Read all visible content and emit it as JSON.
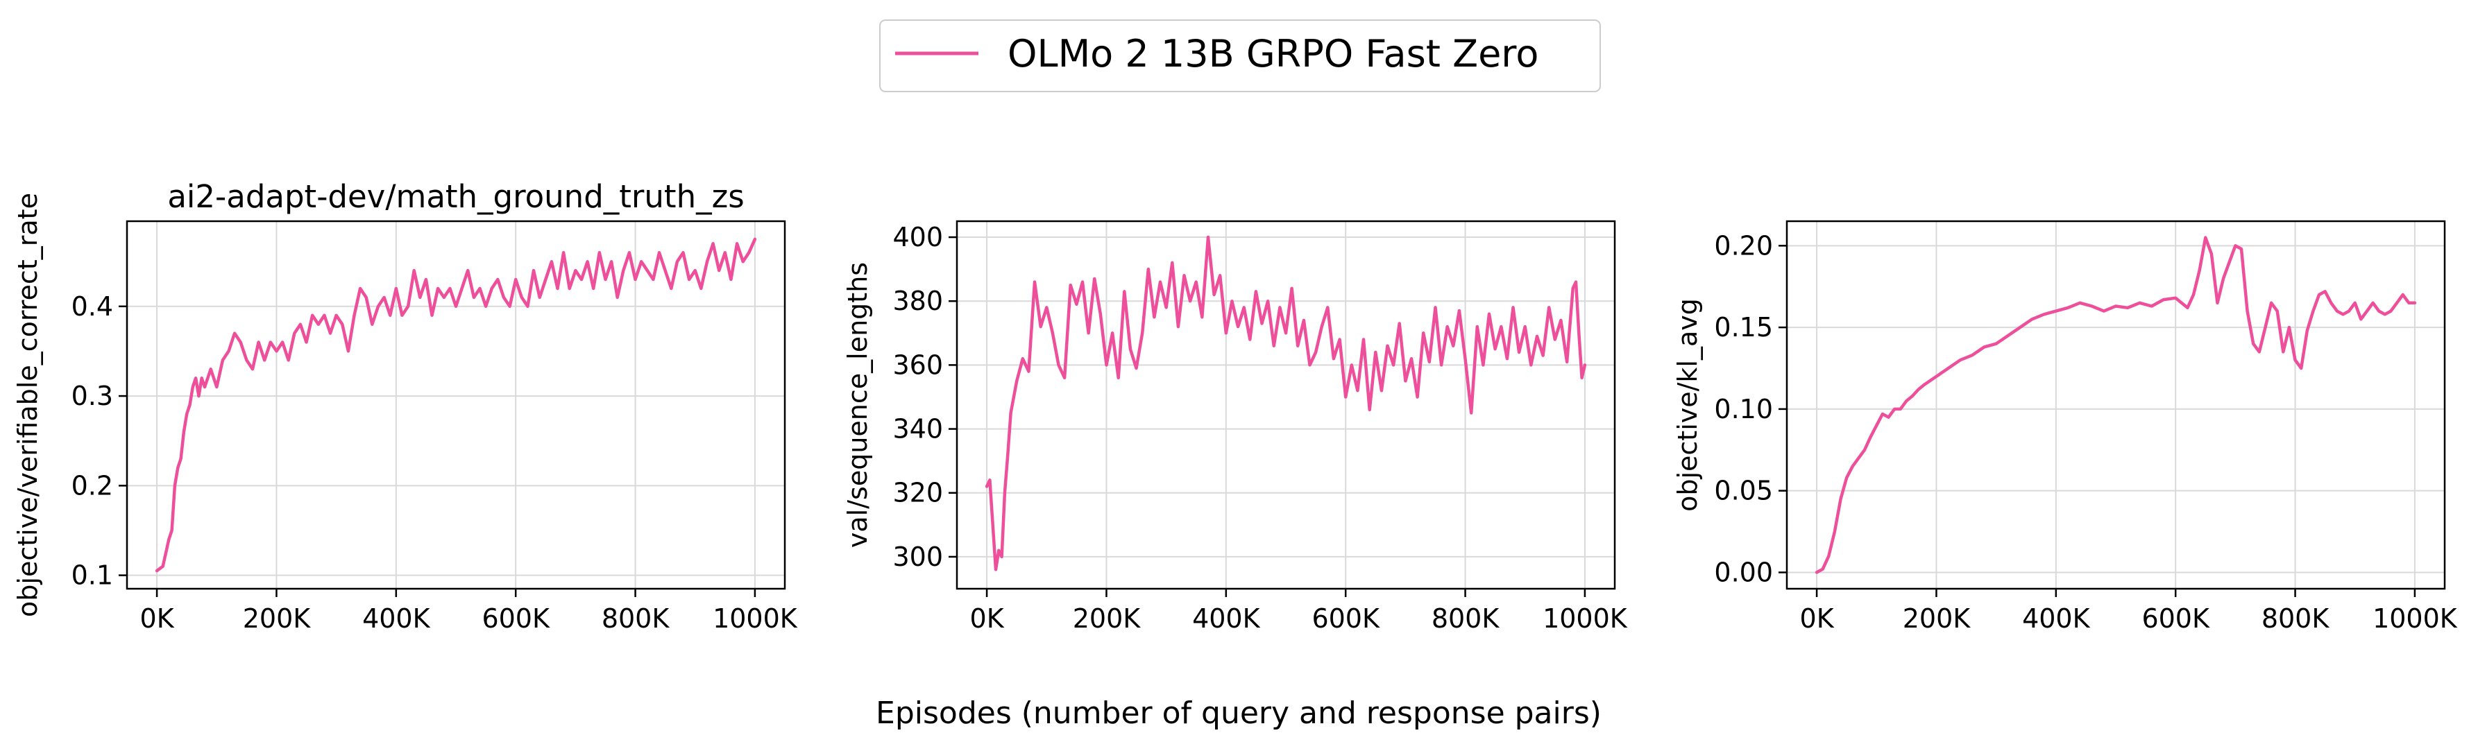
{
  "legend": {
    "label": "OLMo 2 13B GRPO Fast Zero",
    "color": "#ee4f9b"
  },
  "figure": {
    "xlabel": "Episodes (number of query and response pairs)"
  },
  "chart_data": [
    {
      "type": "line",
      "title": "ai2-adapt-dev/math_ground_truth_zs",
      "xlabel": "",
      "ylabel": "objective/verifiable_correct_rate",
      "xlim": [
        -50000,
        1050000
      ],
      "ylim": [
        0.085,
        0.495
      ],
      "xticks": [
        0,
        200000,
        400000,
        600000,
        800000,
        1000000
      ],
      "xtick_labels": [
        "0K",
        "200K",
        "400K",
        "600K",
        "800K",
        "1000K"
      ],
      "yticks": [
        0.1,
        0.2,
        0.3,
        0.4
      ],
      "ytick_labels": [
        "0.1",
        "0.2",
        "0.3",
        "0.4"
      ],
      "grid": true,
      "series": [
        {
          "name": "OLMo 2 13B GRPO Fast Zero",
          "color": "#ee4f9b",
          "x": [
            0,
            10000,
            20000,
            25000,
            30000,
            35000,
            40000,
            45000,
            50000,
            55000,
            60000,
            65000,
            70000,
            75000,
            80000,
            90000,
            100000,
            110000,
            120000,
            130000,
            140000,
            150000,
            160000,
            170000,
            180000,
            190000,
            200000,
            210000,
            220000,
            230000,
            240000,
            250000,
            260000,
            270000,
            280000,
            290000,
            300000,
            310000,
            320000,
            330000,
            340000,
            350000,
            360000,
            370000,
            380000,
            390000,
            400000,
            410000,
            420000,
            430000,
            440000,
            450000,
            460000,
            470000,
            480000,
            490000,
            500000,
            510000,
            520000,
            530000,
            540000,
            550000,
            560000,
            570000,
            580000,
            590000,
            600000,
            610000,
            620000,
            630000,
            640000,
            650000,
            660000,
            670000,
            680000,
            690000,
            700000,
            710000,
            720000,
            730000,
            740000,
            750000,
            760000,
            770000,
            780000,
            790000,
            800000,
            810000,
            820000,
            830000,
            840000,
            850000,
            860000,
            870000,
            880000,
            890000,
            900000,
            910000,
            920000,
            930000,
            940000,
            950000,
            960000,
            970000,
            980000,
            990000,
            1000000
          ],
          "y": [
            0.105,
            0.11,
            0.14,
            0.15,
            0.2,
            0.22,
            0.23,
            0.26,
            0.28,
            0.29,
            0.31,
            0.32,
            0.3,
            0.32,
            0.31,
            0.33,
            0.31,
            0.34,
            0.35,
            0.37,
            0.36,
            0.34,
            0.33,
            0.36,
            0.34,
            0.36,
            0.35,
            0.36,
            0.34,
            0.37,
            0.38,
            0.36,
            0.39,
            0.38,
            0.39,
            0.37,
            0.39,
            0.38,
            0.35,
            0.39,
            0.42,
            0.41,
            0.38,
            0.4,
            0.41,
            0.39,
            0.42,
            0.39,
            0.4,
            0.44,
            0.41,
            0.43,
            0.39,
            0.42,
            0.41,
            0.42,
            0.4,
            0.42,
            0.44,
            0.41,
            0.42,
            0.4,
            0.42,
            0.43,
            0.41,
            0.4,
            0.43,
            0.41,
            0.4,
            0.44,
            0.41,
            0.43,
            0.45,
            0.42,
            0.46,
            0.42,
            0.44,
            0.43,
            0.45,
            0.42,
            0.46,
            0.43,
            0.45,
            0.41,
            0.44,
            0.46,
            0.43,
            0.45,
            0.44,
            0.43,
            0.46,
            0.44,
            0.42,
            0.45,
            0.46,
            0.43,
            0.44,
            0.42,
            0.45,
            0.47,
            0.44,
            0.46,
            0.43,
            0.47,
            0.45,
            0.46,
            0.475
          ]
        }
      ]
    },
    {
      "type": "line",
      "title": "",
      "xlabel": "",
      "ylabel": "val/sequence_lengths",
      "xlim": [
        -50000,
        1050000
      ],
      "ylim": [
        290,
        405
      ],
      "xticks": [
        0,
        200000,
        400000,
        600000,
        800000,
        1000000
      ],
      "xtick_labels": [
        "0K",
        "200K",
        "400K",
        "600K",
        "800K",
        "1000K"
      ],
      "yticks": [
        300,
        320,
        340,
        360,
        380,
        400
      ],
      "ytick_labels": [
        "300",
        "320",
        "340",
        "360",
        "380",
        "400"
      ],
      "grid": true,
      "series": [
        {
          "name": "OLMo 2 13B GRPO Fast Zero",
          "color": "#ee4f9b",
          "x": [
            0,
            5000,
            10000,
            15000,
            20000,
            25000,
            30000,
            35000,
            40000,
            50000,
            60000,
            70000,
            80000,
            90000,
            100000,
            110000,
            120000,
            130000,
            140000,
            150000,
            160000,
            170000,
            180000,
            190000,
            200000,
            210000,
            220000,
            230000,
            240000,
            250000,
            260000,
            270000,
            280000,
            290000,
            300000,
            310000,
            320000,
            330000,
            340000,
            350000,
            360000,
            370000,
            380000,
            390000,
            400000,
            410000,
            420000,
            430000,
            440000,
            450000,
            460000,
            470000,
            480000,
            490000,
            500000,
            510000,
            520000,
            530000,
            540000,
            550000,
            560000,
            570000,
            580000,
            590000,
            600000,
            610000,
            620000,
            630000,
            640000,
            650000,
            660000,
            670000,
            680000,
            690000,
            700000,
            710000,
            720000,
            730000,
            740000,
            750000,
            760000,
            770000,
            780000,
            790000,
            800000,
            810000,
            820000,
            830000,
            840000,
            850000,
            860000,
            870000,
            880000,
            890000,
            900000,
            910000,
            920000,
            930000,
            940000,
            950000,
            960000,
            970000,
            980000,
            985000,
            990000,
            995000,
            1000000
          ],
          "y": [
            322,
            324,
            310,
            296,
            302,
            300,
            320,
            332,
            345,
            355,
            362,
            358,
            386,
            372,
            378,
            370,
            360,
            356,
            385,
            379,
            386,
            370,
            387,
            376,
            360,
            370,
            356,
            383,
            365,
            359,
            370,
            390,
            375,
            386,
            378,
            392,
            372,
            388,
            380,
            386,
            375,
            400,
            382,
            388,
            370,
            380,
            372,
            378,
            368,
            383,
            373,
            380,
            366,
            378,
            370,
            384,
            366,
            374,
            360,
            364,
            372,
            378,
            362,
            368,
            350,
            360,
            352,
            368,
            346,
            364,
            352,
            366,
            360,
            373,
            355,
            362,
            350,
            370,
            361,
            378,
            360,
            372,
            366,
            377,
            362,
            345,
            372,
            360,
            376,
            365,
            372,
            362,
            378,
            364,
            372,
            360,
            369,
            363,
            378,
            368,
            374,
            361,
            384,
            386,
            370,
            356,
            360
          ]
        }
      ]
    },
    {
      "type": "line",
      "title": "",
      "xlabel": "",
      "ylabel": "objective/kl_avg",
      "xlim": [
        -50000,
        1050000
      ],
      "ylim": [
        -0.01,
        0.215
      ],
      "xticks": [
        0,
        200000,
        400000,
        600000,
        800000,
        1000000
      ],
      "xtick_labels": [
        "0K",
        "200K",
        "400K",
        "600K",
        "800K",
        "1000K"
      ],
      "yticks": [
        0.0,
        0.05,
        0.1,
        0.15,
        0.2
      ],
      "ytick_labels": [
        "0.00",
        "0.05",
        "0.10",
        "0.15",
        "0.20"
      ],
      "grid": true,
      "series": [
        {
          "name": "OLMo 2 13B GRPO Fast Zero",
          "color": "#ee4f9b",
          "x": [
            0,
            10000,
            20000,
            30000,
            40000,
            50000,
            60000,
            70000,
            80000,
            90000,
            100000,
            110000,
            120000,
            130000,
            140000,
            150000,
            160000,
            170000,
            180000,
            200000,
            220000,
            240000,
            260000,
            280000,
            300000,
            320000,
            340000,
            360000,
            380000,
            400000,
            420000,
            440000,
            460000,
            480000,
            500000,
            520000,
            540000,
            560000,
            580000,
            600000,
            620000,
            630000,
            640000,
            650000,
            660000,
            670000,
            680000,
            690000,
            700000,
            710000,
            720000,
            730000,
            740000,
            750000,
            760000,
            770000,
            780000,
            790000,
            800000,
            810000,
            820000,
            830000,
            840000,
            850000,
            860000,
            870000,
            880000,
            890000,
            900000,
            910000,
            920000,
            930000,
            940000,
            950000,
            960000,
            970000,
            980000,
            990000,
            1000000
          ],
          "y": [
            0.0,
            0.002,
            0.01,
            0.025,
            0.045,
            0.058,
            0.065,
            0.07,
            0.075,
            0.083,
            0.09,
            0.097,
            0.095,
            0.1,
            0.1,
            0.105,
            0.108,
            0.112,
            0.115,
            0.12,
            0.125,
            0.13,
            0.133,
            0.138,
            0.14,
            0.145,
            0.15,
            0.155,
            0.158,
            0.16,
            0.162,
            0.165,
            0.163,
            0.16,
            0.163,
            0.162,
            0.165,
            0.163,
            0.167,
            0.168,
            0.162,
            0.17,
            0.185,
            0.205,
            0.195,
            0.165,
            0.18,
            0.19,
            0.2,
            0.198,
            0.16,
            0.14,
            0.135,
            0.15,
            0.165,
            0.16,
            0.135,
            0.15,
            0.13,
            0.125,
            0.148,
            0.16,
            0.17,
            0.172,
            0.165,
            0.16,
            0.158,
            0.16,
            0.165,
            0.155,
            0.16,
            0.165,
            0.16,
            0.158,
            0.16,
            0.165,
            0.17,
            0.165,
            0.165
          ]
        }
      ]
    }
  ]
}
